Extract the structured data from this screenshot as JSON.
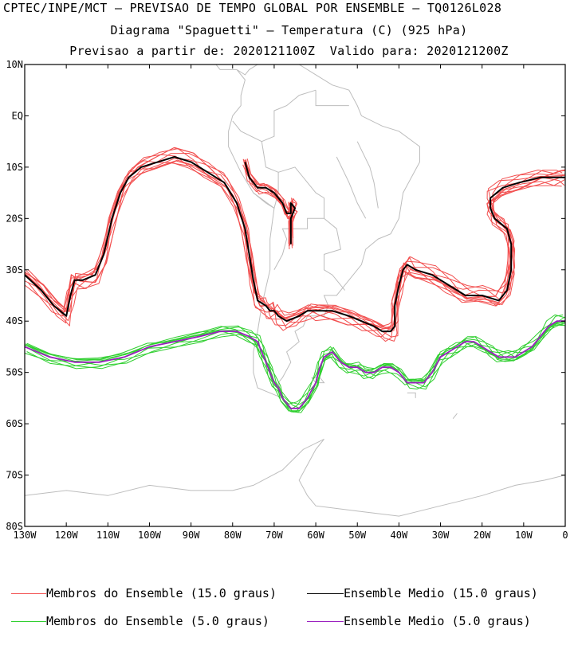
{
  "titles": {
    "line1": "CPTEC/INPE/MCT — PREVISAO DE TEMPO GLOBAL POR ENSEMBLE — TQ0126L028",
    "line2": "Diagrama \"Spaguetti\" — Temperatura (C) (925 hPa)",
    "line3": "Previsao a partir de: 2020121100Z  Valido para: 2020121200Z"
  },
  "map": {
    "lon_range": [
      -130,
      0
    ],
    "lat_range": [
      -80,
      10
    ],
    "lat_ticks": [
      "10N",
      "EQ",
      "10S",
      "20S",
      "30S",
      "40S",
      "50S",
      "60S",
      "70S",
      "80S"
    ],
    "lon_ticks": [
      "130W",
      "120W",
      "110W",
      "100W",
      "90W",
      "80W",
      "70W",
      "60W",
      "50W",
      "40W",
      "30W",
      "20W",
      "10W",
      "0"
    ],
    "colors": {
      "members_15": "#f24f4f",
      "mean_15": "#000000",
      "members_5": "#2fcf2f",
      "mean_5": "#9b1fbf",
      "coast": "#bdbdbd"
    }
  },
  "legend": {
    "members_15": "Membros do Ensemble (15.0 graus)",
    "mean_15": "Ensemble Medio (15.0 graus)",
    "members_5": "Membros do Ensemble (5.0 graus)",
    "mean_5": "Ensemble Medio (5.0 graus)"
  },
  "chart_data": {
    "type": "line",
    "series": [
      {
        "name": "Ensemble Medio (15.0 graus)",
        "x": [
          -130,
          -126,
          -123,
          -120,
          -119,
          -118,
          -116,
          -113,
          -111,
          -109,
          -107,
          -105,
          -102,
          -98,
          -94,
          -90,
          -86,
          -82,
          -79,
          -77,
          -76,
          -75,
          -74,
          -72,
          -71,
          -70,
          -69,
          -67,
          -64,
          -62,
          -60,
          -56,
          -52,
          -49,
          -46,
          -44,
          -42,
          -41,
          -41,
          -40,
          -39,
          -38,
          -36,
          -32,
          -28,
          -24,
          -20,
          -16,
          -14,
          -13,
          -13,
          -14,
          -17,
          -18,
          -18,
          -15,
          -11,
          -6,
          -2,
          0
        ],
        "y": [
          -31,
          -34,
          -37,
          -39,
          -35,
          -32,
          -32,
          -31,
          -27,
          -20,
          -15,
          -12,
          -10,
          -9,
          -8,
          -9,
          -11,
          -13,
          -17,
          -22,
          -27,
          -32,
          -36,
          -37,
          -38,
          -38,
          -39,
          -40,
          -39,
          -38,
          -38,
          -38,
          -39,
          -40,
          -41,
          -42,
          -42,
          -41,
          -37,
          -33,
          -30,
          -29,
          -30,
          -31,
          -33,
          -35,
          -35,
          -36,
          -34,
          -30,
          -25,
          -22,
          -20,
          -18,
          -16,
          -14,
          -13,
          -12,
          -12,
          -12
        ]
      },
      {
        "name": "Ensemble Medio (15.0 graus) - ramo",
        "x": [
          -77,
          -76,
          -74,
          -72,
          -70,
          -68,
          -67,
          -66,
          -66,
          -65,
          -66,
          -66
        ],
        "y": [
          -9,
          -12,
          -14,
          -14,
          -15,
          -17,
          -19,
          -19,
          -17,
          -18,
          -20,
          -25
        ]
      },
      {
        "name": "Ensemble Medio (5.0 graus)",
        "x": [
          -130,
          -124,
          -118,
          -112,
          -106,
          -100,
          -94,
          -88,
          -83,
          -79,
          -76,
          -74,
          -73,
          -72,
          -71,
          -70,
          -69,
          -68,
          -66,
          -64,
          -62,
          -60,
          -59,
          -58,
          -56,
          -54,
          -52,
          -50,
          -48,
          -46,
          -44,
          -42,
          -40,
          -38,
          -36,
          -34,
          -32,
          -30,
          -28,
          -26,
          -24,
          -22,
          -20,
          -18,
          -16,
          -14,
          -12,
          -10,
          -8,
          -6,
          -4,
          -2,
          0
        ],
        "y": [
          -45,
          -47,
          -48,
          -48,
          -47,
          -45,
          -44,
          -43,
          -42,
          -42,
          -43,
          -44,
          -46,
          -48,
          -50,
          -52,
          -53,
          -55,
          -57,
          -57,
          -55,
          -52,
          -49,
          -47,
          -46,
          -48,
          -49,
          -49,
          -50,
          -50,
          -49,
          -49,
          -50,
          -52,
          -52,
          -52,
          -50,
          -47,
          -46,
          -45,
          -44,
          -44,
          -45,
          -46,
          -47,
          -47,
          -47,
          -46,
          -45,
          -43,
          -41,
          -40,
          -40
        ]
      }
    ],
    "member_counts": {
      "members_15": 10,
      "members_5": 8
    },
    "xlabel": "",
    "ylabel": "",
    "xlim": [
      -130,
      0
    ],
    "ylim": [
      -80,
      10
    ]
  }
}
